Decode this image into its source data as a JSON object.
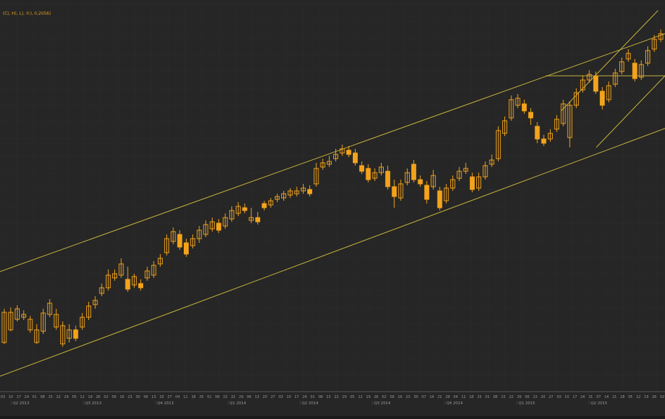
{
  "legend_text": "(C), H), L), ©), 0,2056)",
  "colors": {
    "background": "#262626",
    "grid": "#3a3a3a",
    "trendline": "#c8b43c",
    "candle": "#f3a31b",
    "axis_text": "#9a9a9a"
  },
  "chart_data": {
    "type": "candlestick",
    "grid": true,
    "x_ticks": [
      "03",
      "10",
      "17",
      "24",
      "01",
      "08",
      "15",
      "22",
      "29",
      "05",
      "12",
      "19",
      "26",
      "02",
      "09",
      "16",
      "23",
      "30",
      "06",
      "13",
      "20",
      "27",
      "04",
      "11",
      "18",
      "25",
      "01",
      "08",
      "15",
      "22",
      "29",
      "06",
      "13",
      "20",
      "27",
      "03",
      "10",
      "17",
      "24",
      "01",
      "08",
      "15",
      "22",
      "29",
      "05",
      "12",
      "19",
      "26",
      "02",
      "09",
      "16",
      "23",
      "30",
      "07",
      "14",
      "21",
      "28",
      "04",
      "11",
      "18",
      "25",
      "01",
      "08",
      "15",
      "22",
      "29",
      "06",
      "13",
      "20",
      "27",
      "03",
      "10",
      "17",
      "24",
      "31",
      "07",
      "14",
      "21",
      "28",
      "05",
      "12",
      "19",
      "26",
      "02"
    ],
    "quarter_labels": [
      "Q2 2013",
      "Q3 2013",
      "Q4 2013",
      "Q1 2014",
      "Q2 2014",
      "Q3 2014",
      "Q4 2014",
      "Q1 2015",
      "Q2 2015"
    ],
    "candles": [
      [
        1,
        488,
        445,
        440,
        490
      ],
      [
        2,
        470,
        445,
        438,
        472
      ],
      [
        3,
        455,
        440,
        435,
        458
      ],
      [
        4,
        452,
        448,
        442,
        456
      ],
      [
        5,
        470,
        455,
        450,
        474
      ],
      [
        6,
        488,
        470,
        462,
        490
      ],
      [
        7,
        472,
        446,
        440,
        476
      ],
      [
        8,
        448,
        432,
        426,
        452
      ],
      [
        9,
        466,
        448,
        440,
        470
      ],
      [
        10,
        490,
        464,
        458,
        494
      ],
      [
        11,
        482,
        470,
        462,
        488
      ],
      [
        12,
        470,
        482,
        464,
        486
      ],
      [
        13,
        466,
        452,
        446,
        470
      ],
      [
        14,
        452,
        436,
        430,
        456
      ],
      [
        15,
        434,
        428,
        422,
        440
      ],
      [
        16,
        418,
        410,
        404,
        422
      ],
      [
        17,
        410,
        392,
        384,
        414
      ],
      [
        18,
        396,
        390,
        384,
        400
      ],
      [
        19,
        392,
        376,
        368,
        396
      ],
      [
        20,
        398,
        412,
        380,
        416
      ],
      [
        21,
        406,
        394,
        390,
        410
      ],
      [
        22,
        404,
        410,
        398,
        414
      ],
      [
        23,
        396,
        386,
        380,
        400
      ],
      [
        24,
        392,
        378,
        372,
        396
      ],
      [
        25,
        376,
        368,
        362,
        380
      ],
      [
        26,
        360,
        340,
        334,
        364
      ],
      [
        27,
        344,
        330,
        324,
        348
      ],
      [
        28,
        334,
        352,
        328,
        356
      ],
      [
        29,
        346,
        362,
        340,
        366
      ],
      [
        30,
        350,
        340,
        334,
        354
      ],
      [
        31,
        340,
        328,
        322,
        346
      ],
      [
        32,
        334,
        320,
        314,
        338
      ],
      [
        33,
        326,
        316,
        310,
        330
      ],
      [
        34,
        318,
        328,
        312,
        332
      ],
      [
        35,
        322,
        310,
        304,
        326
      ],
      [
        36,
        312,
        300,
        294,
        316
      ],
      [
        37,
        304,
        294,
        288,
        308
      ],
      [
        38,
        296,
        300,
        290,
        304
      ],
      [
        39,
        314,
        310,
        296,
        318
      ],
      [
        40,
        310,
        316,
        302,
        320
      ],
      [
        41,
        290,
        296,
        286,
        300
      ],
      [
        42,
        292,
        286,
        282,
        296
      ],
      [
        43,
        284,
        280,
        276,
        288
      ],
      [
        44,
        282,
        276,
        272,
        286
      ],
      [
        45,
        278,
        272,
        268,
        282
      ],
      [
        46,
        276,
        272,
        266,
        280
      ],
      [
        47,
        272,
        268,
        262,
        276
      ],
      [
        48,
        270,
        276,
        264,
        280
      ],
      [
        49,
        262,
        240,
        232,
        266
      ],
      [
        50,
        238,
        232,
        226,
        242
      ],
      [
        51,
        234,
        230,
        222,
        238
      ],
      [
        52,
        226,
        220,
        212,
        230
      ],
      [
        53,
        218,
        212,
        206,
        222
      ],
      [
        54,
        214,
        220,
        208,
        224
      ],
      [
        55,
        218,
        232,
        212,
        236
      ],
      [
        56,
        236,
        244,
        230,
        248
      ],
      [
        57,
        240,
        256,
        234,
        260
      ],
      [
        58,
        254,
        246,
        240,
        258
      ],
      [
        59,
        246,
        238,
        232,
        250
      ],
      [
        60,
        244,
        266,
        236,
        270
      ],
      [
        61,
        266,
        280,
        256,
        296
      ],
      [
        62,
        282,
        262,
        256,
        286
      ],
      [
        63,
        260,
        246,
        240,
        264
      ],
      [
        64,
        234,
        256,
        228,
        260
      ],
      [
        65,
        256,
        262,
        250,
        266
      ],
      [
        66,
        264,
        284,
        258,
        290
      ],
      [
        67,
        266,
        250,
        242,
        270
      ],
      [
        68,
        272,
        296,
        266,
        300
      ],
      [
        69,
        286,
        268,
        262,
        290
      ],
      [
        70,
        268,
        256,
        250,
        272
      ],
      [
        71,
        254,
        244,
        238,
        258
      ],
      [
        72,
        244,
        240,
        232,
        248
      ],
      [
        73,
        252,
        270,
        246,
        274
      ],
      [
        74,
        268,
        252,
        246,
        272
      ],
      [
        75,
        252,
        236,
        230,
        256
      ],
      [
        76,
        234,
        228,
        220,
        238
      ],
      [
        77,
        226,
        186,
        180,
        230
      ],
      [
        78,
        190,
        172,
        166,
        194
      ],
      [
        79,
        168,
        142,
        136,
        172
      ],
      [
        80,
        150,
        140,
        134,
        154
      ],
      [
        81,
        148,
        158,
        142,
        162
      ],
      [
        82,
        160,
        168,
        154,
        178
      ],
      [
        83,
        180,
        198,
        174,
        204
      ],
      [
        84,
        198,
        204,
        192,
        208
      ],
      [
        85,
        198,
        190,
        184,
        202
      ],
      [
        86,
        184,
        170,
        164,
        188
      ],
      [
        87,
        176,
        148,
        142,
        180
      ],
      [
        88,
        196,
        150,
        144,
        210
      ],
      [
        89,
        150,
        132,
        126,
        154
      ],
      [
        90,
        128,
        114,
        108,
        132
      ],
      [
        91,
        114,
        106,
        100,
        118
      ],
      [
        92,
        108,
        130,
        102,
        134
      ],
      [
        93,
        130,
        150,
        124,
        156
      ],
      [
        94,
        142,
        122,
        116,
        146
      ],
      [
        95,
        120,
        104,
        98,
        124
      ],
      [
        96,
        102,
        88,
        82,
        106
      ],
      [
        97,
        84,
        76,
        70,
        88
      ],
      [
        98,
        90,
        112,
        84,
        116
      ],
      [
        99,
        110,
        92,
        86,
        114
      ],
      [
        100,
        90,
        72,
        66,
        94
      ],
      [
        101,
        70,
        56,
        50,
        74
      ],
      [
        102,
        56,
        48,
        42,
        60
      ]
    ],
    "trendlines": [
      {
        "x1": 0,
        "y1": 387,
        "x2": 948,
        "y2": 48
      },
      {
        "x1": 0,
        "y1": 536,
        "x2": 948,
        "y2": 183
      },
      {
        "x1": 778,
        "y1": 108,
        "x2": 948,
        "y2": 108
      },
      {
        "x1": 850,
        "y1": 210,
        "x2": 948,
        "y2": 108
      },
      {
        "x1": 800,
        "y1": 158,
        "x2": 938,
        "y2": 15
      }
    ]
  }
}
